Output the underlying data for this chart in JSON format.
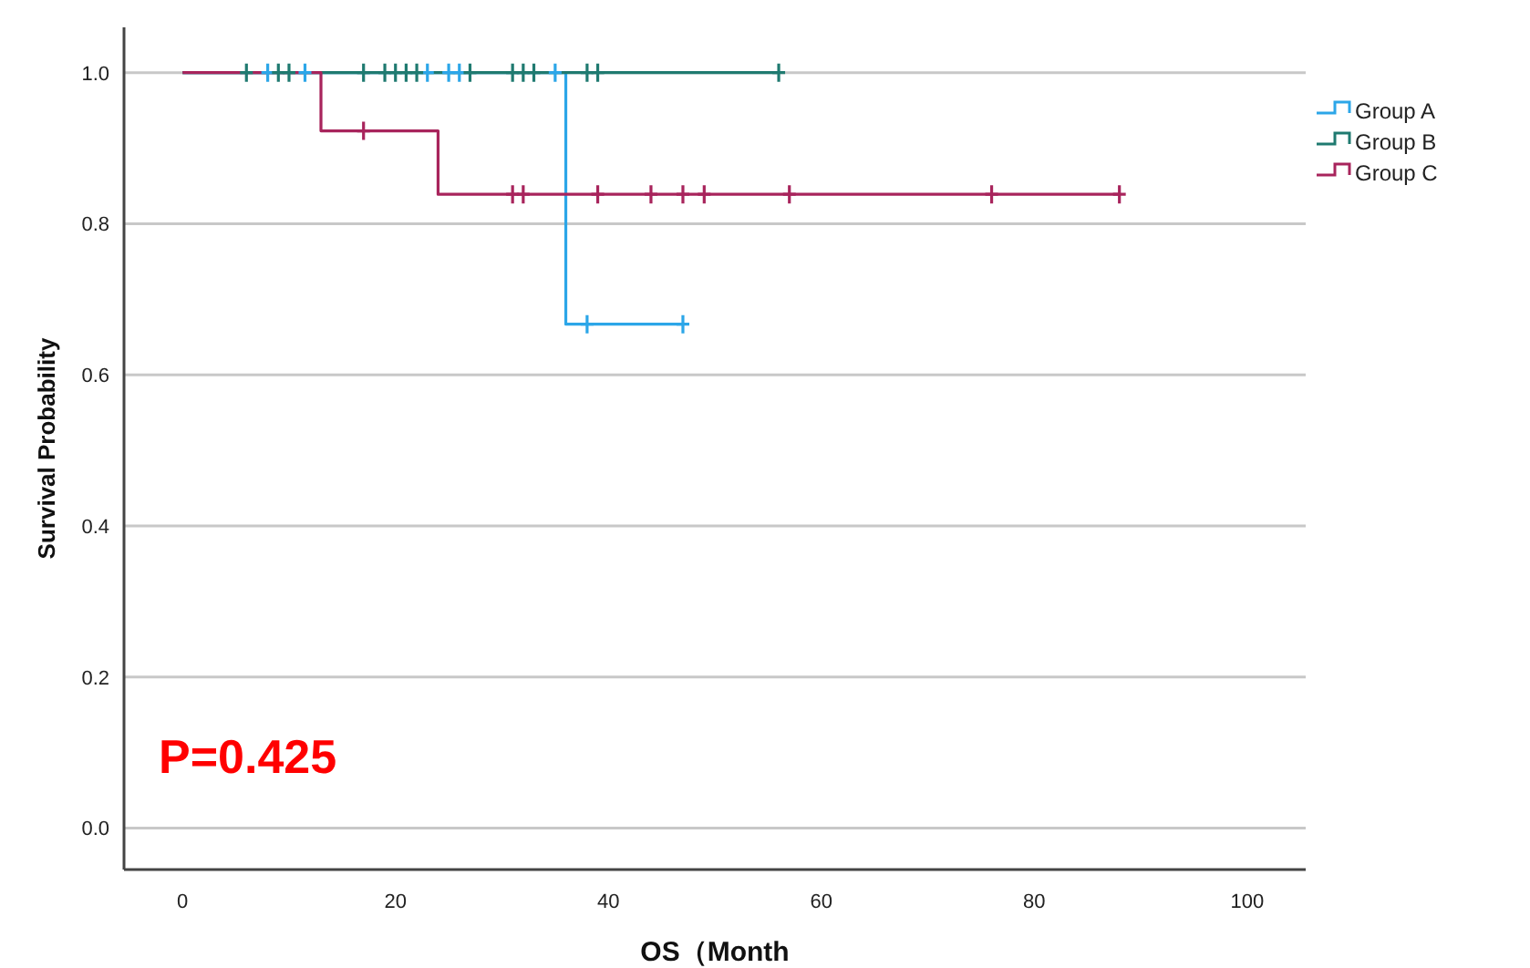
{
  "chart_data": {
    "type": "step",
    "xlabel": "OS（Month",
    "ylabel": "Survival Probability",
    "xlim": [
      -5.5,
      105.5
    ],
    "ylim": [
      -0.055,
      1.06
    ],
    "xticks": [
      0,
      20,
      40,
      60,
      80,
      100
    ],
    "yticks": [
      {
        "value": 0,
        "label": "0.0"
      },
      {
        "value": 0.2,
        "label": "0.2"
      },
      {
        "value": 0.4,
        "label": "0.4"
      },
      {
        "value": 0.6,
        "label": "0.6"
      },
      {
        "value": 0.8,
        "label": "0.8"
      },
      {
        "value": 1,
        "label": "1.0"
      }
    ],
    "grid": "y",
    "legend": "right",
    "annotations": [
      "P=0.425"
    ],
    "series": [
      {
        "name": "Group A",
        "color": "#2ca6e8",
        "x": [
          0,
          36,
          47
        ],
        "values": [
          1,
          0.667,
          0.667
        ]
      },
      {
        "name": "Group B",
        "color": "#1f7a70",
        "x": [
          0,
          56
        ],
        "values": [
          1,
          1
        ]
      },
      {
        "name": "Group C",
        "color": "#a8245c",
        "x": [
          0,
          13,
          24,
          88
        ],
        "values": [
          1,
          0.923,
          0.839,
          0.839
        ]
      },
      {
        "type": "scatter",
        "marker": "cross",
        "color": "#2ca6e8",
        "x": [
          8,
          11.5,
          23,
          25,
          26,
          35,
          38,
          47
        ],
        "values": [
          1,
          1,
          1,
          1,
          1,
          1,
          0.667,
          0.667
        ]
      },
      {
        "type": "scatter",
        "marker": "cross",
        "color": "#1f7a70",
        "x": [
          6,
          9,
          10,
          17,
          19,
          20,
          21,
          22,
          27,
          31,
          32,
          33,
          38,
          39,
          56
        ],
        "values": [
          1,
          1,
          1,
          1,
          1,
          1,
          1,
          1,
          1,
          1,
          1,
          1,
          1,
          1,
          1
        ]
      },
      {
        "type": "scatter",
        "marker": "cross",
        "color": "#a8245c",
        "x": [
          17,
          31,
          32,
          39,
          44,
          47,
          49,
          57,
          76,
          88
        ],
        "values": [
          0.923,
          0.839,
          0.839,
          0.839,
          0.839,
          0.839,
          0.839,
          0.839,
          0.839,
          0.839
        ]
      }
    ]
  }
}
